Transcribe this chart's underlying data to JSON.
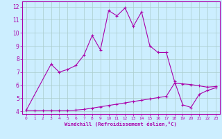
{
  "xlabel": "Windchill (Refroidissement éolien,°C)",
  "background_color": "#cceeff",
  "grid_color": "#aacccc",
  "line_color": "#aa00aa",
  "xlim": [
    -0.5,
    23.5
  ],
  "ylim": [
    3.8,
    12.4
  ],
  "xticks": [
    0,
    1,
    2,
    3,
    4,
    5,
    6,
    7,
    8,
    9,
    10,
    11,
    12,
    13,
    14,
    15,
    16,
    17,
    18,
    19,
    20,
    21,
    22,
    23
  ],
  "yticks": [
    4,
    5,
    6,
    7,
    8,
    9,
    10,
    11,
    12
  ],
  "curve1_x": [
    0,
    3,
    4,
    5,
    6,
    7,
    8,
    9,
    10,
    11,
    12,
    13,
    14,
    15,
    16,
    17,
    18,
    19,
    20,
    21,
    22,
    23
  ],
  "curve1_y": [
    4.1,
    7.6,
    7.0,
    7.2,
    7.5,
    8.3,
    9.8,
    8.7,
    11.7,
    11.3,
    11.9,
    10.5,
    11.6,
    9.0,
    8.5,
    8.5,
    6.3,
    4.5,
    4.3,
    5.3,
    5.6,
    5.8
  ],
  "curve2_x": [
    0,
    1,
    2,
    3,
    4,
    5,
    6,
    7,
    8,
    9,
    10,
    11,
    12,
    13,
    14,
    15,
    16,
    17,
    18,
    19,
    20,
    21,
    22,
    23
  ],
  "curve2_y": [
    4.1,
    4.05,
    4.05,
    4.05,
    4.05,
    4.05,
    4.1,
    4.15,
    4.25,
    4.35,
    4.45,
    4.55,
    4.65,
    4.75,
    4.85,
    4.95,
    5.05,
    5.15,
    6.15,
    6.1,
    6.05,
    5.95,
    5.85,
    5.9
  ]
}
